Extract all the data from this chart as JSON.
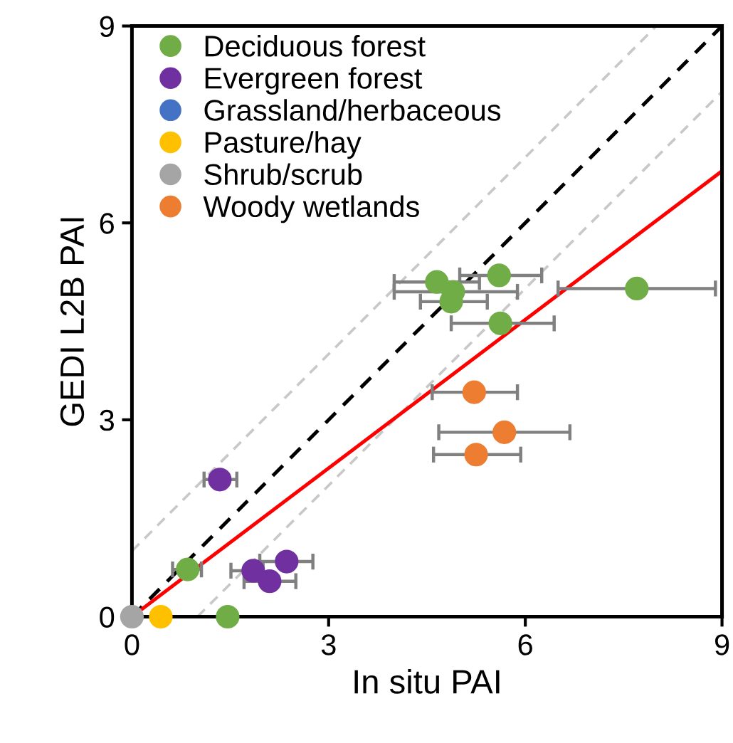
{
  "chart_data": {
    "type": "scatter",
    "xlabel": "In situ PAI",
    "ylabel": "GEDI L2B PAI",
    "xlim": [
      0,
      9
    ],
    "ylim": [
      0,
      9
    ],
    "xticks": [
      0,
      3,
      6,
      9
    ],
    "yticks": [
      0,
      3,
      6,
      9
    ],
    "grid": false,
    "legend": "top left",
    "marker": "circle",
    "series": [
      {
        "name": "Deciduous forest",
        "color": "#70ad47",
        "x": [
          1.46,
          0.85,
          4.65,
          4.9,
          4.87,
          5.6,
          5.62,
          7.7
        ],
        "values": [
          0,
          0.72,
          5.1,
          4.95,
          4.8,
          5.2,
          4.47,
          5.0
        ],
        "xerrors": [
          null,
          [
            0.62,
            1.06
          ],
          [
            4.0,
            5.3
          ],
          [
            4.0,
            5.88
          ],
          [
            4.4,
            5.42
          ],
          [
            5.0,
            6.25
          ],
          [
            4.87,
            6.44
          ],
          [
            6.5,
            8.9
          ]
        ]
      },
      {
        "name": "Evergreen forest",
        "color": "#7030a0",
        "x": [
          1.34,
          2.36,
          1.85,
          2.1
        ],
        "values": [
          2.09,
          0.84,
          0.7,
          0.54
        ],
        "xerrors": [
          [
            1.1,
            1.6
          ],
          [
            1.95,
            2.76
          ],
          [
            1.51,
            2.0
          ],
          [
            1.71,
            2.5
          ]
        ]
      },
      {
        "name": "Grassland/herbaceous",
        "color": "#4472c4"
      },
      {
        "name": "Pasture/hay",
        "color": "#ffc000",
        "x": [
          0.44
        ],
        "values": [
          0
        ]
      },
      {
        "name": "Shrub/scrub",
        "color": "#a5a5a5",
        "x": [
          0
        ],
        "values": [
          0
        ]
      },
      {
        "name": "Woody wetlands",
        "color": "#ed7d31",
        "x": [
          5.22,
          5.68,
          5.25
        ],
        "values": [
          3.42,
          2.81,
          2.47
        ],
        "xerrors": [
          [
            4.58,
            5.88
          ],
          [
            4.68,
            6.68
          ],
          [
            4.6,
            5.93
          ]
        ]
      },
      {
        "type": "line",
        "marker": "none",
        "color": "#c8c8c8",
        "line_style": "dashed",
        "x": [
          0,
          8
        ],
        "values": [
          1,
          9
        ]
      },
      {
        "type": "line",
        "marker": "none",
        "color": "#c8c8c8",
        "line_style": "dashed",
        "x": [
          1,
          9
        ],
        "values": [
          0,
          8
        ]
      },
      {
        "type": "line",
        "marker": "none",
        "color": "#000000",
        "line_style": "dashed",
        "x": [
          0,
          9
        ],
        "values": [
          0,
          9
        ]
      },
      {
        "type": "line",
        "marker": "none",
        "color": "#ff0000",
        "line_style": "solid",
        "x": [
          0,
          9
        ],
        "values": [
          0,
          6.79
        ]
      }
    ]
  }
}
